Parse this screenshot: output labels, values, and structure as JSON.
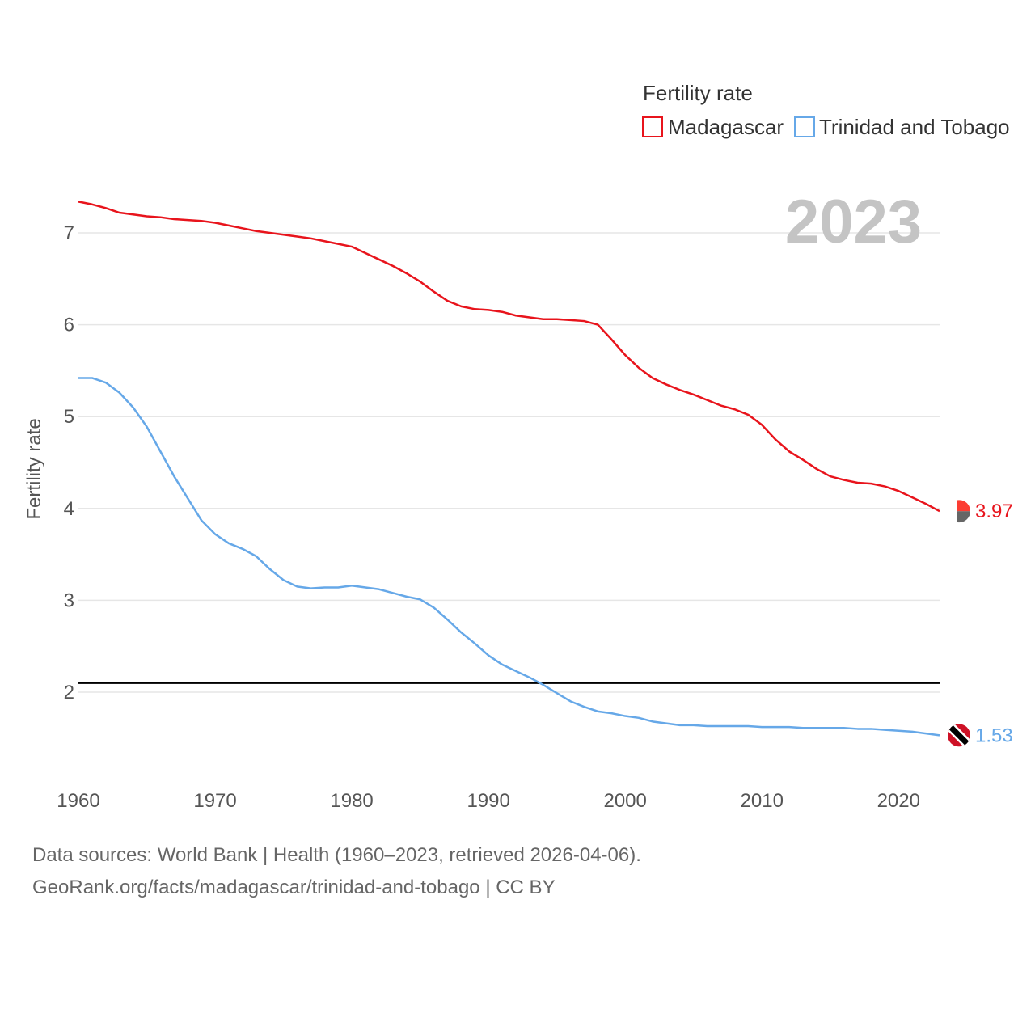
{
  "chart_data": {
    "type": "line",
    "legend_title": "Fertility rate",
    "ylabel": "Fertility rate",
    "year_overlay": "2023",
    "xlim": [
      1960,
      2023
    ],
    "ylim": [
      1.0,
      7.5
    ],
    "x_ticks": [
      1960,
      1970,
      1980,
      1990,
      2000,
      2010,
      2020
    ],
    "y_ticks": [
      2,
      3,
      4,
      5,
      6,
      7
    ],
    "reference_line": {
      "value": 2.1,
      "color": "#000000"
    },
    "x": [
      1960,
      1961,
      1962,
      1963,
      1964,
      1965,
      1966,
      1967,
      1968,
      1969,
      1970,
      1971,
      1972,
      1973,
      1974,
      1975,
      1976,
      1977,
      1978,
      1979,
      1980,
      1981,
      1982,
      1983,
      1984,
      1985,
      1986,
      1987,
      1988,
      1989,
      1990,
      1991,
      1992,
      1993,
      1994,
      1995,
      1996,
      1997,
      1998,
      1999,
      2000,
      2001,
      2002,
      2003,
      2004,
      2005,
      2006,
      2007,
      2008,
      2009,
      2010,
      2011,
      2012,
      2013,
      2014,
      2015,
      2016,
      2017,
      2018,
      2019,
      2020,
      2021,
      2022,
      2023
    ],
    "series": [
      {
        "name": "Madagascar",
        "color": "#e8141c",
        "end_label": "3.97",
        "flag_colors": [
          "#fc3d32",
          "#007e3a",
          "#ffffff"
        ],
        "values": [
          7.34,
          7.31,
          7.27,
          7.22,
          7.2,
          7.18,
          7.17,
          7.15,
          7.14,
          7.13,
          7.11,
          7.08,
          7.05,
          7.02,
          7.0,
          6.98,
          6.96,
          6.94,
          6.91,
          6.88,
          6.85,
          6.78,
          6.71,
          6.64,
          6.56,
          6.47,
          6.36,
          6.26,
          6.2,
          6.17,
          6.16,
          6.14,
          6.1,
          6.08,
          6.06,
          6.06,
          6.05,
          6.04,
          6.0,
          5.84,
          5.67,
          5.53,
          5.42,
          5.35,
          5.29,
          5.24,
          5.18,
          5.12,
          5.08,
          5.02,
          4.91,
          4.75,
          4.62,
          4.53,
          4.43,
          4.35,
          4.31,
          4.28,
          4.27,
          4.24,
          4.19,
          4.12,
          4.05,
          3.97
        ]
      },
      {
        "name": "Trinidad and Tobago",
        "color": "#66a8e8",
        "end_label": "1.53",
        "flag_colors": [
          "#ce1126",
          "#000000",
          "#ffffff"
        ],
        "values": [
          5.42,
          5.42,
          5.37,
          5.26,
          5.1,
          4.89,
          4.62,
          4.35,
          4.11,
          3.87,
          3.72,
          3.62,
          3.56,
          3.48,
          3.34,
          3.22,
          3.15,
          3.13,
          3.14,
          3.14,
          3.16,
          3.14,
          3.12,
          3.08,
          3.04,
          3.01,
          2.92,
          2.79,
          2.65,
          2.53,
          2.4,
          2.3,
          2.23,
          2.16,
          2.08,
          1.99,
          1.9,
          1.84,
          1.79,
          1.77,
          1.74,
          1.72,
          1.68,
          1.66,
          1.64,
          1.64,
          1.63,
          1.63,
          1.63,
          1.63,
          1.62,
          1.62,
          1.62,
          1.61,
          1.61,
          1.61,
          1.61,
          1.6,
          1.6,
          1.59,
          1.58,
          1.57,
          1.55,
          1.53
        ]
      }
    ]
  },
  "footer": {
    "line1": "Data sources: World Bank | Health (1960–2023, retrieved 2026-04-06).",
    "line2": "GeoRank.org/facts/madagascar/trinidad-and-tobago | CC BY"
  }
}
